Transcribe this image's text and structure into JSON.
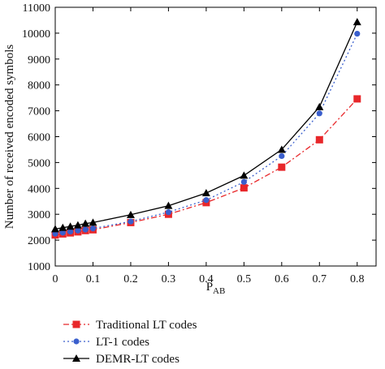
{
  "chart_data": {
    "type": "line",
    "xlabel": "P",
    "xlabel_sub": "AB",
    "ylabel": "Number of received encoded symbols",
    "xlim": [
      0,
      0.85
    ],
    "ylim": [
      1000,
      11000
    ],
    "x_ticks": [
      0,
      0.1,
      0.2,
      0.3,
      0.4,
      0.5,
      0.6,
      0.7,
      0.8
    ],
    "x_tick_labels": [
      "0",
      "0.1",
      "0.2",
      "0.3",
      "0.4",
      "0.5",
      "0.6",
      "0.7",
      "0.8"
    ],
    "y_ticks": [
      1000,
      2000,
      3000,
      4000,
      5000,
      6000,
      7000,
      8000,
      9000,
      10000,
      11000
    ],
    "y_tick_labels": [
      "1000",
      "2000",
      "3000",
      "4000",
      "5000",
      "6000",
      "7000",
      "8000",
      "9000",
      "10000",
      "11000"
    ],
    "x": [
      0,
      0.02,
      0.04,
      0.06,
      0.08,
      0.1,
      0.2,
      0.3,
      0.4,
      0.5,
      0.6,
      0.7,
      0.8
    ],
    "grid": false,
    "legend_position": "bottom-left",
    "series": [
      {
        "name": "Traditional LT codes",
        "color": "#e8272a",
        "marker": "square",
        "line_style": "dash-dot",
        "values": [
          2200,
          2240,
          2280,
          2320,
          2370,
          2400,
          2680,
          3000,
          3450,
          4020,
          4820,
          5880,
          7460
        ]
      },
      {
        "name": "LT-1 codes",
        "color": "#3a5fcd",
        "marker": "circle",
        "line_style": "dotted",
        "values": [
          2250,
          2290,
          2330,
          2370,
          2410,
          2450,
          2720,
          3080,
          3550,
          4250,
          5250,
          6900,
          9980
        ]
      },
      {
        "name": "DEMR-LT codes",
        "color": "#000000",
        "marker": "triangle",
        "line_style": "solid",
        "values": [
          2430,
          2480,
          2530,
          2580,
          2640,
          2680,
          2980,
          3330,
          3820,
          4500,
          5500,
          7150,
          10430
        ]
      }
    ]
  }
}
